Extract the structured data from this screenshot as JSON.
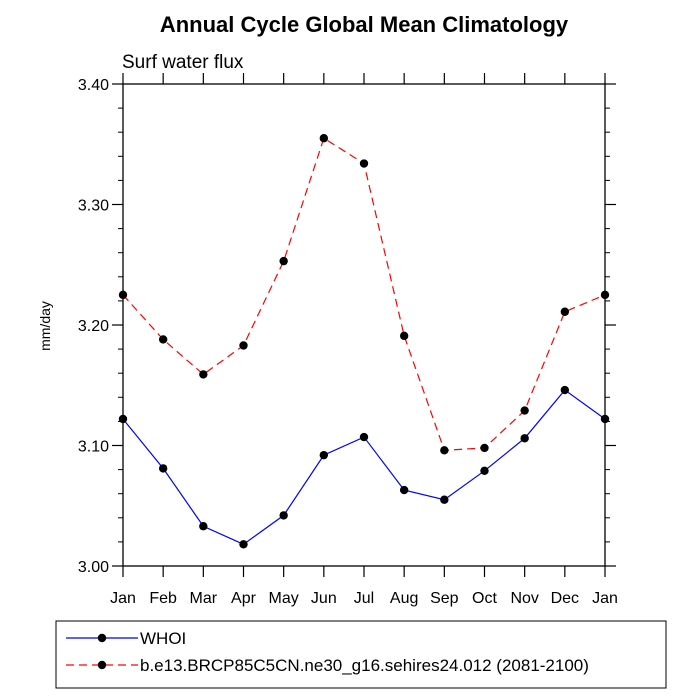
{
  "chart_data": {
    "type": "line",
    "title": "Annual Cycle Global Mean Climatology",
    "subtitle": "Surf water flux",
    "xlabel": "",
    "ylabel": "mm/day",
    "categories": [
      "Jan",
      "Feb",
      "Mar",
      "Apr",
      "May",
      "Jun",
      "Jul",
      "Aug",
      "Sep",
      "Oct",
      "Nov",
      "Dec",
      "Jan"
    ],
    "ylim": [
      3.0,
      3.4
    ],
    "yticks": [
      3.0,
      3.1,
      3.2,
      3.3,
      3.4
    ],
    "ytick_labels": [
      "3.00",
      "3.10",
      "3.20",
      "3.30",
      "3.40"
    ],
    "series": [
      {
        "name": "WHOI",
        "color": "#0000ff",
        "dash": "solid",
        "values": [
          3.122,
          3.081,
          3.033,
          3.018,
          3.042,
          3.092,
          3.107,
          3.063,
          3.055,
          3.079,
          3.106,
          3.146,
          3.122
        ]
      },
      {
        "name": "b.e13.BRCP85C5CN.ne30_g16.sehires24.012 (2081-2100)",
        "color": "#ff0000",
        "dash": "dashed",
        "values": [
          3.225,
          3.188,
          3.159,
          3.183,
          3.253,
          3.355,
          3.334,
          3.191,
          3.096,
          3.098,
          3.129,
          3.211,
          3.225
        ]
      }
    ],
    "legend_position": "bottom-left"
  }
}
